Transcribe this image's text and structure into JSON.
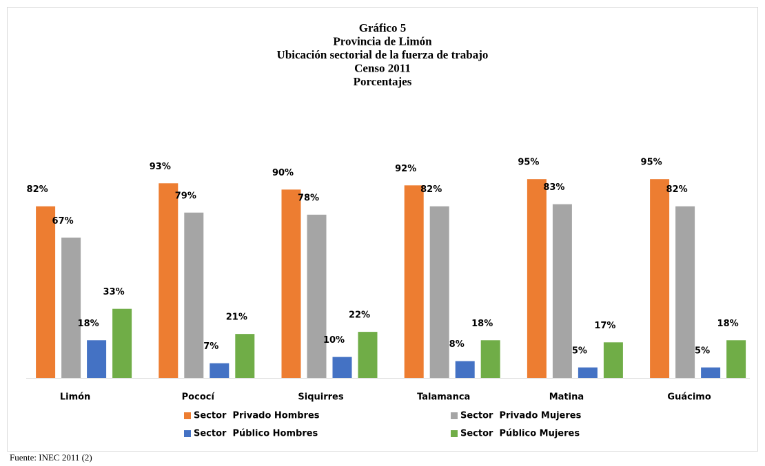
{
  "chart_data": {
    "type": "bar",
    "title": [
      "Gráfico 5",
      "Provincia de Limón",
      "Ubicación sectorial de la fuerza de trabajo",
      "Censo 2011",
      "Porcentajes"
    ],
    "categories": [
      "Limón",
      "Pococí",
      "Siquirres",
      "Talamanca",
      "Matina",
      "Guácimo"
    ],
    "series": [
      {
        "name": "Sector  Privado Hombres",
        "color": "#ed7d31",
        "values": [
          82,
          93,
          90,
          92,
          95,
          95
        ],
        "value_labels": [
          "82%",
          "93%",
          "90%",
          "92%",
          "95%",
          "95%"
        ]
      },
      {
        "name": "Sector  Privado Mujeres",
        "color": "#a5a5a5",
        "values": [
          67,
          79,
          78,
          82,
          83,
          82
        ],
        "value_labels": [
          "67%",
          "79%",
          "78%",
          "82%",
          "83%",
          "82%"
        ]
      },
      {
        "name": "Sector  Público Hombres",
        "color": "#4472c4",
        "values": [
          18,
          7,
          10,
          8,
          5,
          5
        ],
        "value_labels": [
          "18%",
          "7%",
          "10%",
          "8%",
          "5%",
          "5%"
        ]
      },
      {
        "name": "Sector  Público Mujeres",
        "color": "#70ad47",
        "values": [
          33,
          21,
          22,
          18,
          17,
          18
        ],
        "value_labels": [
          "33%",
          "21%",
          "22%",
          "18%",
          "17%",
          "18%"
        ]
      }
    ],
    "source": "Fuente: INEC 2011 (2)"
  }
}
